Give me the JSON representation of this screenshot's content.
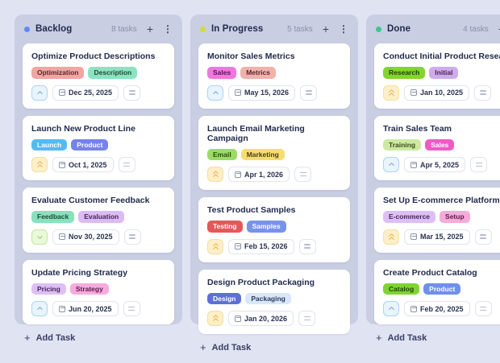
{
  "icons": {
    "add": "+",
    "more": "⋮"
  },
  "colors": {
    "page_bg": "#E0E3F2",
    "column_bg": "#C9CEE3",
    "card_bg": "#FFFFFF",
    "title_text": "#222B4E",
    "muted_text": "#8A90AB",
    "priority_medium": "#3E8EE0",
    "priority_high": "#E8A11E",
    "priority_low": "#71C43F"
  },
  "board": {
    "columns": [
      {
        "title": "Backlog",
        "count": "8 tasks",
        "dot_color": "#5F8CEF",
        "add_task_label": "Add Task",
        "cards": [
          {
            "title": "Optimize Product Descriptions",
            "tags": [
              {
                "label": "Optimization",
                "bg": "#F2A5A1",
                "fg": "#5C2430"
              },
              {
                "label": "Description",
                "bg": "#89E4BF",
                "fg": "#1E4B38"
              }
            ],
            "priority": "medium",
            "due": "Dec 25, 2025"
          },
          {
            "title": "Launch New Product Line",
            "tags": [
              {
                "label": "Launch",
                "bg": "#53BBF2",
                "fg": "#FFFFFF"
              },
              {
                "label": "Product",
                "bg": "#7583EB",
                "fg": "#FFFFFF"
              }
            ],
            "priority": "high",
            "due": "Oct 1, 2025"
          },
          {
            "title": "Evaluate Customer Feedback",
            "tags": [
              {
                "label": "Feedback",
                "bg": "#85E2BC",
                "fg": "#1E4B38"
              },
              {
                "label": "Evaluation",
                "bg": "#DCBAF3",
                "fg": "#45255E"
              }
            ],
            "priority": "low",
            "due": "Nov 30, 2025"
          },
          {
            "title": "Update Pricing Strategy",
            "tags": [
              {
                "label": "Pricing",
                "bg": "#DEBFF3",
                "fg": "#45255E"
              },
              {
                "label": "Strategy",
                "bg": "#F6ABDE",
                "fg": "#5E1B48"
              }
            ],
            "priority": "medium",
            "due": "Jun 20, 2025"
          }
        ]
      },
      {
        "title": "In Progress",
        "count": "5 tasks",
        "dot_color": "#D2DB3E",
        "add_task_label": "Add Task",
        "cards": [
          {
            "title": "Monitor Sales Metrics",
            "tags": [
              {
                "label": "Sales",
                "bg": "#F176DE",
                "fg": "#5C1150"
              },
              {
                "label": "Metrics",
                "bg": "#F0B2AB",
                "fg": "#5C2430"
              }
            ],
            "priority": "medium",
            "due": "May 15, 2026"
          },
          {
            "title": "Launch Email Marketing Campaign",
            "tags": [
              {
                "label": "Email",
                "bg": "#9BDC66",
                "fg": "#2E4A12"
              },
              {
                "label": "Marketing",
                "bg": "#F6DD70",
                "fg": "#4C3E14"
              }
            ],
            "priority": "high",
            "due": "Apr 1, 2026"
          },
          {
            "title": "Test Product Samples",
            "tags": [
              {
                "label": "Testing",
                "bg": "#E45858",
                "fg": "#FFFFFF"
              },
              {
                "label": "Samples",
                "bg": "#7793EA",
                "fg": "#FFFFFF"
              }
            ],
            "priority": "high",
            "due": "Feb 15, 2026"
          },
          {
            "title": "Design Product Packaging",
            "tags": [
              {
                "label": "Design",
                "bg": "#5C70D8",
                "fg": "#FFFFFF"
              },
              {
                "label": "Packaging",
                "bg": "#D9E7F9",
                "fg": "#2B3A5E"
              }
            ],
            "priority": "high",
            "due": "Jan 20, 2026"
          }
        ]
      },
      {
        "title": "Done",
        "count": "4 tasks",
        "dot_color": "#3FC690",
        "add_task_label": "Add Task",
        "cards": [
          {
            "title": "Conduct Initial Product Research",
            "tags": [
              {
                "label": "Research",
                "bg": "#83D52B",
                "fg": "#23400A"
              },
              {
                "label": "Initial",
                "bg": "#CFABEA",
                "fg": "#45255E"
              }
            ],
            "priority": "high",
            "due": "Jan 10, 2025"
          },
          {
            "title": "Train Sales Team",
            "tags": [
              {
                "label": "Training",
                "bg": "#CDE9A1",
                "fg": "#3A4A1E"
              },
              {
                "label": "Sales",
                "bg": "#EF5AC6",
                "fg": "#FFFFFF"
              }
            ],
            "priority": "medium",
            "due": "Apr 5, 2025"
          },
          {
            "title": "Set Up E-commerce Platform",
            "tags": [
              {
                "label": "E-commerce",
                "bg": "#DDBFF5",
                "fg": "#45255E"
              },
              {
                "label": "Setup",
                "bg": "#F6ABDA",
                "fg": "#5E1B48"
              }
            ],
            "priority": "high",
            "due": "Mar 15, 2025"
          },
          {
            "title": "Create Product Catalog",
            "tags": [
              {
                "label": "Catalog",
                "bg": "#7FD431",
                "fg": "#23400A"
              },
              {
                "label": "Product",
                "bg": "#6F90EA",
                "fg": "#FFFFFF"
              }
            ],
            "priority": "medium",
            "due": "Feb 20, 2025"
          }
        ]
      }
    ]
  }
}
